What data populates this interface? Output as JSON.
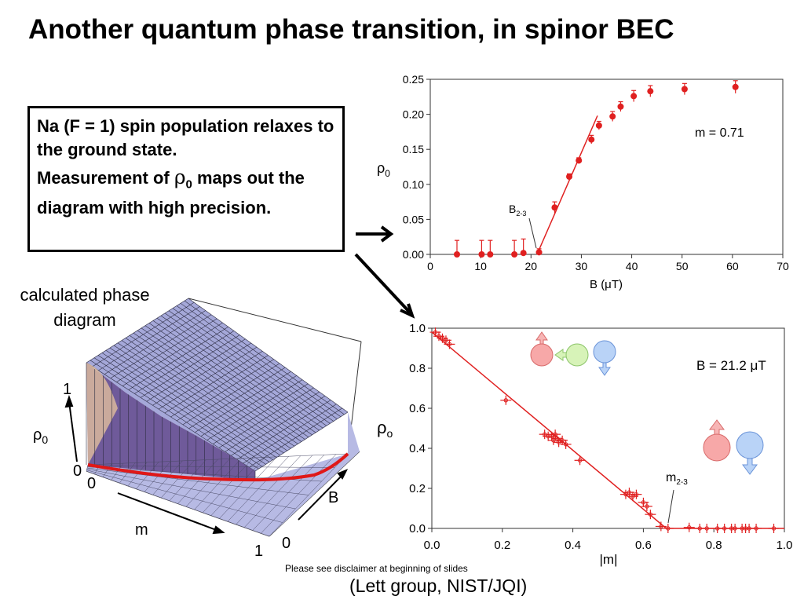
{
  "slide": {
    "title": "Another quantum phase transition, in spinor BEC",
    "callout": {
      "line1": "Na (F = 1) spin population relaxes to the ground state.",
      "line2_prefix": "Measurement of ",
      "line2_symbol": "ρ",
      "line2_sub": "0",
      "line2_suffix": " maps out the diagram with high precision."
    },
    "diagram_label": "calculated phase diagram",
    "disclaimer": "Please see disclaimer at beginning of slides",
    "credit": "(Lett group, NIST/JQI)"
  },
  "surface_plot": {
    "axis_rho_label": "ρ",
    "axis_rho_sub": "0",
    "rho_tick_top": "1",
    "rho_tick_bottom": "0",
    "m_label": "m",
    "m_tick_start": "0",
    "m_tick_end": "1",
    "b_label": "B",
    "b_tick_start": "0",
    "colors": {
      "surface": "#a3a6d8",
      "mesh": "#2b2b40",
      "curve": "#e01818"
    }
  },
  "chart_data": [
    {
      "type": "scatter",
      "xlabel": "B (μT)",
      "ylabel": "ρ",
      "ylabel_sub": "0",
      "xlim": [
        0,
        70
      ],
      "ylim": [
        0,
        0.25
      ],
      "xticks": [
        "0",
        "10",
        "20",
        "30",
        "40",
        "50",
        "60",
        "70"
      ],
      "yticks": [
        "0.00",
        "0.05",
        "0.10",
        "0.15",
        "0.20",
        "0.25"
      ],
      "annotation": "m = 0.71",
      "marker_label": "B",
      "marker_label_sub": "2-3",
      "color": "#e02020",
      "points": [
        {
          "x": 5.3,
          "y": 0.0,
          "err": 0.02
        },
        {
          "x": 10.2,
          "y": 0.0,
          "err": 0.02
        },
        {
          "x": 11.9,
          "y": 0.0,
          "err": 0.02
        },
        {
          "x": 16.7,
          "y": 0.0,
          "err": 0.02
        },
        {
          "x": 18.5,
          "y": 0.002,
          "err": 0.02
        },
        {
          "x": 21.6,
          "y": 0.003,
          "err": 0.005
        },
        {
          "x": 24.7,
          "y": 0.067,
          "err": 0.008
        },
        {
          "x": 27.6,
          "y": 0.111,
          "err": 0.004
        },
        {
          "x": 29.5,
          "y": 0.134,
          "err": 0.004
        },
        {
          "x": 32.0,
          "y": 0.164,
          "err": 0.006
        },
        {
          "x": 33.5,
          "y": 0.184,
          "err": 0.006
        },
        {
          "x": 36.2,
          "y": 0.197,
          "err": 0.007
        },
        {
          "x": 37.8,
          "y": 0.211,
          "err": 0.007
        },
        {
          "x": 40.4,
          "y": 0.226,
          "err": 0.008
        },
        {
          "x": 43.7,
          "y": 0.233,
          "err": 0.008
        },
        {
          "x": 50.5,
          "y": 0.236,
          "err": 0.008
        },
        {
          "x": 60.6,
          "y": 0.239,
          "err": 0.009
        }
      ],
      "fit_line": [
        [
          21.2,
          0.0
        ],
        [
          33.2,
          0.198
        ]
      ],
      "marker_x": 21.2
    },
    {
      "type": "scatter",
      "xlabel": "|m|",
      "ylabel": "ρ",
      "ylabel_sub": "o",
      "xlim": [
        0,
        1
      ],
      "ylim": [
        0,
        1
      ],
      "xticks": [
        "0.0",
        "0.2",
        "0.4",
        "0.6",
        "0.8",
        "1.0"
      ],
      "yticks": [
        "0.0",
        "0.2",
        "0.4",
        "0.6",
        "0.8",
        "1.0"
      ],
      "annotation": "B = 21.2 μT",
      "marker_label": "m",
      "marker_label_sub": "2-3",
      "color": "#e02020",
      "points": [
        {
          "x": 0.01,
          "y": 0.98
        },
        {
          "x": 0.02,
          "y": 0.96
        },
        {
          "x": 0.03,
          "y": 0.95
        },
        {
          "x": 0.04,
          "y": 0.94
        },
        {
          "x": 0.05,
          "y": 0.92
        },
        {
          "x": 0.21,
          "y": 0.64
        },
        {
          "x": 0.32,
          "y": 0.47
        },
        {
          "x": 0.33,
          "y": 0.46
        },
        {
          "x": 0.34,
          "y": 0.46
        },
        {
          "x": 0.345,
          "y": 0.44
        },
        {
          "x": 0.35,
          "y": 0.47
        },
        {
          "x": 0.355,
          "y": 0.45
        },
        {
          "x": 0.36,
          "y": 0.43
        },
        {
          "x": 0.37,
          "y": 0.44
        },
        {
          "x": 0.38,
          "y": 0.42
        },
        {
          "x": 0.42,
          "y": 0.34
        },
        {
          "x": 0.55,
          "y": 0.17
        },
        {
          "x": 0.56,
          "y": 0.18
        },
        {
          "x": 0.57,
          "y": 0.16
        },
        {
          "x": 0.58,
          "y": 0.17
        },
        {
          "x": 0.6,
          "y": 0.13
        },
        {
          "x": 0.61,
          "y": 0.11
        },
        {
          "x": 0.62,
          "y": 0.07
        },
        {
          "x": 0.65,
          "y": 0.01
        },
        {
          "x": 0.67,
          "y": 0.0
        },
        {
          "x": 0.73,
          "y": 0.005
        },
        {
          "x": 0.76,
          "y": 0.0
        },
        {
          "x": 0.78,
          "y": 0.0
        },
        {
          "x": 0.81,
          "y": 0.0
        },
        {
          "x": 0.83,
          "y": 0.0
        },
        {
          "x": 0.85,
          "y": 0.0
        },
        {
          "x": 0.86,
          "y": 0.0
        },
        {
          "x": 0.88,
          "y": 0.0
        },
        {
          "x": 0.89,
          "y": 0.0
        },
        {
          "x": 0.9,
          "y": 0.0
        },
        {
          "x": 0.92,
          "y": 0.0
        },
        {
          "x": 0.97,
          "y": 0.0
        }
      ],
      "fit_line": [
        [
          0.0,
          0.98
        ],
        [
          0.665,
          0.0
        ],
        [
          1.0,
          0.0
        ]
      ],
      "marker_x": 0.665
    }
  ]
}
